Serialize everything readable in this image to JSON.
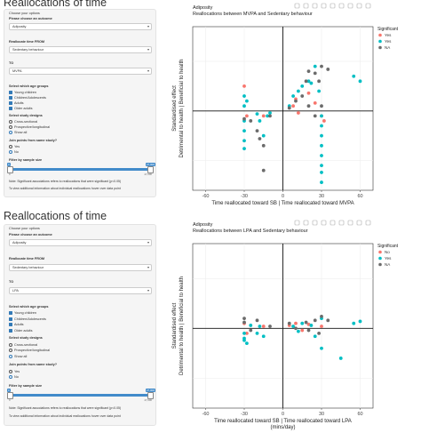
{
  "sections": [
    {
      "heading": "Reallocations of time",
      "sidebar": {
        "outcome_prompt": "Choose your options",
        "outcome_label": "Please choose an outcome",
        "outcome_value": "Adiposity",
        "from_label": "Reallocate time FROM",
        "from_value": "Sedentary behaviour",
        "to_label": "TO",
        "to_value": "MVPA",
        "age_label": "Select which age groups",
        "age_groups": [
          {
            "label": "Young children",
            "checked": true
          },
          {
            "label": "Children/Adolescents",
            "checked": true
          },
          {
            "label": "Adults",
            "checked": true
          },
          {
            "label": "Older adults",
            "checked": true
          }
        ],
        "design_label": "Select study designs",
        "designs": [
          {
            "label": "Cross-sectional",
            "checked": false
          },
          {
            "label": "Prospective/longitudinal",
            "checked": false
          },
          {
            "label": "Show all",
            "checked": true
          }
        ],
        "join_label": "Join points from same study?",
        "join_options": [
          {
            "label": "Yes",
            "checked": false
          },
          {
            "label": "No",
            "checked": true
          }
        ],
        "filter_label": "Filter by sample size",
        "slider_min": "0",
        "slider_max": "27,000",
        "slider_ticks": [
          "0",
          "27,000"
        ],
        "note1": "Note: Significant associations refers to reallocations that were significant (p<0.05)",
        "note2": "To view additional information about individual reallocations hover over data point"
      },
      "chart_data": {
        "type": "scatter",
        "title": "Adiposity",
        "subtitle": "Reallocations between MVPA and Sedentary behaviour",
        "xlabel": "Time reallocated toward SB | Time reallocated toward MVPA",
        "xlabel2": "",
        "ylabel": "Detrimental to health | Beneficial to health",
        "ylabel2": "Standardised effect",
        "xlim": [
          -70,
          70
        ],
        "ylim": [
          -0.8,
          0.85
        ],
        "xticks": [
          -60,
          -30,
          0,
          30,
          60
        ],
        "grid": true,
        "legend_title": "Significant",
        "legend_position": "right",
        "series": [
          {
            "name": "Yes",
            "color": "#f8766d",
            "points": [
              [
                -30,
                0.25
              ],
              [
                -28,
                -0.05
              ],
              [
                10,
                0.12
              ],
              [
                12,
                -0.02
              ],
              [
                20,
                0.18
              ],
              [
                30,
                -0.05
              ],
              [
                32,
                -0.1
              ],
              [
                -15,
                -0.05
              ],
              [
                8,
                0.05
              ],
              [
                25,
                0.08
              ]
            ]
          },
          {
            "name": "Yes",
            "color": "#00bfc4",
            "points": [
              [
                -30,
                0.15
              ],
              [
                -30,
                0.05
              ],
              [
                -30,
                -0.1
              ],
              [
                -30,
                -0.2
              ],
              [
                -30,
                -0.3
              ],
              [
                -30,
                -0.38
              ],
              [
                -28,
                0.1
              ],
              [
                -20,
                -0.03
              ],
              [
                -18,
                -0.1
              ],
              [
                -15,
                -0.25
              ],
              [
                -12,
                -0.05
              ],
              [
                -10,
                -0.02
              ],
              [
                5,
                0.05
              ],
              [
                8,
                0.15
              ],
              [
                12,
                0.2
              ],
              [
                15,
                0.25
              ],
              [
                20,
                0.3
              ],
              [
                22,
                0.28
              ],
              [
                25,
                0.45
              ],
              [
                28,
                0.2
              ],
              [
                30,
                -0.05
              ],
              [
                30,
                -0.15
              ],
              [
                30,
                -0.25
              ],
              [
                30,
                -0.35
              ],
              [
                30,
                -0.45
              ],
              [
                30,
                -0.55
              ],
              [
                30,
                -0.62
              ],
              [
                30,
                -0.72
              ],
              [
                55,
                0.35
              ],
              [
                60,
                0.3
              ]
            ]
          },
          {
            "name": "NA",
            "color": "#6b6b6b",
            "points": [
              [
                -30,
                -0.08
              ],
              [
                -25,
                -0.1
              ],
              [
                -20,
                -0.2
              ],
              [
                -18,
                -0.28
              ],
              [
                -15,
                -0.35
              ],
              [
                -15,
                -0.6
              ],
              [
                -10,
                -0.05
              ],
              [
                5,
                0.03
              ],
              [
                10,
                0.1
              ],
              [
                15,
                0.15
              ],
              [
                18,
                0.3
              ],
              [
                20,
                0.4
              ],
              [
                25,
                0.38
              ],
              [
                28,
                0.3
              ],
              [
                30,
                0.45
              ],
              [
                35,
                0.42
              ],
              [
                30,
                0.05
              ],
              [
                20,
                0.05
              ],
              [
                25,
                -0.05
              ]
            ]
          }
        ]
      }
    },
    {
      "heading": "Reallocations of time",
      "sidebar": {
        "outcome_prompt": "Choose your options",
        "outcome_label": "Please choose an outcome",
        "outcome_value": "Adiposity",
        "from_label": "Reallocate time FROM",
        "from_value": "Sedentary behaviour",
        "to_label": "TO",
        "to_value": "LPA",
        "age_label": "Select which age groups",
        "age_groups": [
          {
            "label": "Young children",
            "checked": true
          },
          {
            "label": "Children/Adolescents",
            "checked": true
          },
          {
            "label": "Adults",
            "checked": true
          },
          {
            "label": "Older adults",
            "checked": true
          }
        ],
        "design_label": "Select study designs",
        "designs": [
          {
            "label": "Cross-sectional",
            "checked": false
          },
          {
            "label": "Prospective/longitudinal",
            "checked": false
          },
          {
            "label": "Show all",
            "checked": true
          }
        ],
        "join_label": "Join points from same study?",
        "join_options": [
          {
            "label": "Yes",
            "checked": false
          },
          {
            "label": "No",
            "checked": true
          }
        ],
        "filter_label": "Filter by sample size",
        "slider_min": "0",
        "slider_max": "27,000",
        "slider_ticks": [
          "0",
          "27,000"
        ],
        "note1": "Note: Significant associations refers to reallocations that were significant (p<0.05)",
        "note2": "To view additional information about individual reallocations hover over data point"
      },
      "chart_data": {
        "type": "scatter",
        "title": "Adiposity",
        "subtitle": "Reallocations between LPA and Sedentary behaviour",
        "xlabel": "Time reallocated toward SB | Time reallocated toward LPA",
        "xlabel2": "(mins/day)",
        "ylabel": "Detrimental to health | Beneficial to health",
        "ylabel2": "Standardised effect",
        "xlim": [
          -70,
          70
        ],
        "ylim": [
          -0.8,
          0.85
        ],
        "xticks": [
          -60,
          -30,
          0,
          30,
          60
        ],
        "grid": true,
        "legend_title": "Significant",
        "legend_position": "right",
        "series": [
          {
            "name": "No",
            "color": "#f8766d",
            "points": [
              [
                -30,
                0.05
              ],
              [
                -28,
                -0.05
              ],
              [
                -15,
                0.02
              ],
              [
                5,
                0.03
              ],
              [
                10,
                0.05
              ],
              [
                15,
                -0.02
              ],
              [
                20,
                0.04
              ],
              [
                30,
                0.02
              ]
            ]
          },
          {
            "name": "Yes",
            "color": "#00bfc4",
            "points": [
              [
                -30,
                -0.05
              ],
              [
                -30,
                -0.1
              ],
              [
                -30,
                -0.12
              ],
              [
                -28,
                -0.15
              ],
              [
                -25,
                0.03
              ],
              [
                -20,
                -0.05
              ],
              [
                -18,
                0.02
              ],
              [
                -15,
                -0.08
              ],
              [
                8,
                0.02
              ],
              [
                12,
                -0.03
              ],
              [
                15,
                0.05
              ],
              [
                22,
                0.03
              ],
              [
                25,
                -0.08
              ],
              [
                30,
                0.1
              ],
              [
                30,
                -0.2
              ],
              [
                55,
                0.05
              ],
              [
                60,
                0.07
              ],
              [
                45,
                -0.3
              ]
            ]
          },
          {
            "name": "NA",
            "color": "#6b6b6b",
            "points": [
              [
                -30,
                0.1
              ],
              [
                -30,
                0.06
              ],
              [
                -25,
                -0.02
              ],
              [
                -20,
                0.08
              ],
              [
                -10,
                0.02
              ],
              [
                5,
                0.05
              ],
              [
                10,
                0.0
              ],
              [
                18,
                0.06
              ],
              [
                20,
                -0.02
              ],
              [
                25,
                0.08
              ],
              [
                30,
                0.12
              ],
              [
                35,
                0.08
              ],
              [
                28,
                -0.05
              ]
            ]
          }
        ]
      }
    }
  ]
}
